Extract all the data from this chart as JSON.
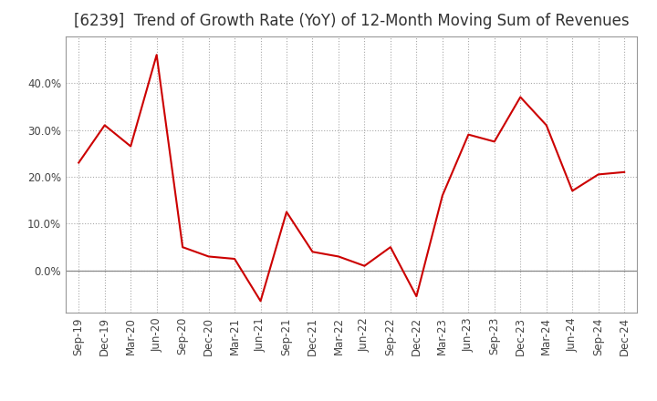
{
  "title": "[6239]  Trend of Growth Rate (YoY) of 12-Month Moving Sum of Revenues",
  "x_labels": [
    "Sep-19",
    "Dec-19",
    "Mar-20",
    "Jun-20",
    "Sep-20",
    "Dec-20",
    "Mar-21",
    "Jun-21",
    "Sep-21",
    "Dec-21",
    "Mar-22",
    "Jun-22",
    "Sep-22",
    "Dec-22",
    "Mar-23",
    "Jun-23",
    "Sep-23",
    "Dec-23",
    "Mar-24",
    "Jun-24",
    "Sep-24",
    "Dec-24"
  ],
  "y_values": [
    0.23,
    0.31,
    0.265,
    0.46,
    0.05,
    0.03,
    0.025,
    -0.065,
    0.125,
    0.04,
    0.03,
    0.01,
    0.05,
    -0.055,
    0.16,
    0.29,
    0.275,
    0.37,
    0.31,
    0.17,
    0.205,
    0.21
  ],
  "line_color": "#cc0000",
  "background_color": "#ffffff",
  "grid_color": "#aaaaaa",
  "ylim": [
    -0.09,
    0.5
  ],
  "yticks": [
    0.0,
    0.1,
    0.2,
    0.3,
    0.4
  ],
  "title_fontsize": 12,
  "axis_fontsize": 8.5
}
